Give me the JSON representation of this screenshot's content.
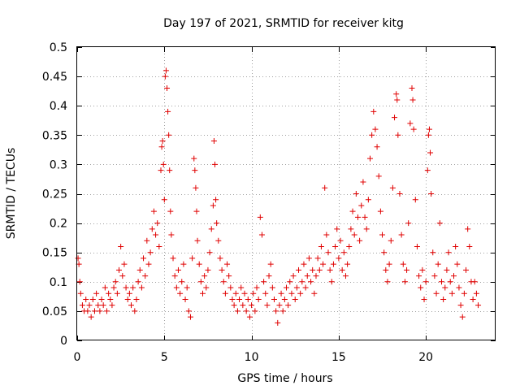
{
  "chart_data": {
    "type": "scatter",
    "title": "Day 197 of 2021, SRMTID for receiver kitg",
    "xlabel": "GPS time / hours",
    "ylabel": "SRMTID / TECUs",
    "xlim": [
      0,
      24
    ],
    "ylim": [
      0,
      0.5
    ],
    "x_ticks": [
      0,
      5,
      10,
      15,
      20
    ],
    "x_tick_labels": [
      "0",
      "5",
      "10",
      "15",
      "20"
    ],
    "y_ticks": [
      0,
      0.05,
      0.1,
      0.15,
      0.2,
      0.25,
      0.3,
      0.35,
      0.4,
      0.45,
      0.5
    ],
    "y_tick_labels": [
      "0",
      "0.05",
      "0.1",
      "0.15",
      "0.2",
      "0.25",
      "0.3",
      "0.35",
      "0.4",
      "0.45",
      "0.5"
    ],
    "grid": true,
    "marker": "plus",
    "color": "#e00000",
    "series": [
      {
        "name": "SRMTID",
        "points": [
          [
            0.05,
            0.14
          ],
          [
            0.1,
            0.13
          ],
          [
            0.15,
            0.1
          ],
          [
            0.2,
            0.08
          ],
          [
            0.3,
            0.06
          ],
          [
            0.4,
            0.05
          ],
          [
            0.5,
            0.07
          ],
          [
            0.6,
            0.05
          ],
          [
            0.7,
            0.06
          ],
          [
            0.8,
            0.04
          ],
          [
            0.9,
            0.07
          ],
          [
            1.0,
            0.05
          ],
          [
            1.1,
            0.08
          ],
          [
            1.2,
            0.06
          ],
          [
            1.3,
            0.05
          ],
          [
            1.4,
            0.07
          ],
          [
            1.5,
            0.06
          ],
          [
            1.6,
            0.09
          ],
          [
            1.7,
            0.05
          ],
          [
            1.8,
            0.08
          ],
          [
            1.9,
            0.07
          ],
          [
            2.0,
            0.06
          ],
          [
            2.1,
            0.09
          ],
          [
            2.2,
            0.1
          ],
          [
            2.3,
            0.08
          ],
          [
            2.4,
            0.12
          ],
          [
            2.5,
            0.16
          ],
          [
            2.6,
            0.11
          ],
          [
            2.7,
            0.13
          ],
          [
            2.8,
            0.09
          ],
          [
            2.9,
            0.07
          ],
          [
            3.0,
            0.08
          ],
          [
            3.1,
            0.06
          ],
          [
            3.2,
            0.09
          ],
          [
            3.3,
            0.05
          ],
          [
            3.4,
            0.07
          ],
          [
            3.5,
            0.1
          ],
          [
            3.6,
            0.12
          ],
          [
            3.7,
            0.09
          ],
          [
            3.8,
            0.14
          ],
          [
            3.9,
            0.11
          ],
          [
            4.0,
            0.17
          ],
          [
            4.1,
            0.13
          ],
          [
            4.2,
            0.15
          ],
          [
            4.3,
            0.19
          ],
          [
            4.4,
            0.22
          ],
          [
            4.5,
            0.18
          ],
          [
            4.6,
            0.2
          ],
          [
            4.7,
            0.16
          ],
          [
            4.8,
            0.29
          ],
          [
            4.85,
            0.33
          ],
          [
            4.9,
            0.34
          ],
          [
            4.95,
            0.3
          ],
          [
            5.0,
            0.24
          ],
          [
            5.05,
            0.45
          ],
          [
            5.1,
            0.46
          ],
          [
            5.15,
            0.43
          ],
          [
            5.2,
            0.39
          ],
          [
            5.25,
            0.35
          ],
          [
            5.3,
            0.29
          ],
          [
            5.35,
            0.22
          ],
          [
            5.4,
            0.18
          ],
          [
            5.5,
            0.14
          ],
          [
            5.6,
            0.11
          ],
          [
            5.7,
            0.09
          ],
          [
            5.8,
            0.12
          ],
          [
            5.9,
            0.08
          ],
          [
            6.0,
            0.1
          ],
          [
            6.1,
            0.13
          ],
          [
            6.2,
            0.07
          ],
          [
            6.3,
            0.09
          ],
          [
            6.4,
            0.05
          ],
          [
            6.5,
            0.04
          ],
          [
            6.6,
            0.14
          ],
          [
            6.7,
            0.31
          ],
          [
            6.75,
            0.29
          ],
          [
            6.8,
            0.26
          ],
          [
            6.85,
            0.22
          ],
          [
            6.9,
            0.17
          ],
          [
            7.0,
            0.13
          ],
          [
            7.1,
            0.1
          ],
          [
            7.2,
            0.08
          ],
          [
            7.3,
            0.11
          ],
          [
            7.4,
            0.09
          ],
          [
            7.5,
            0.12
          ],
          [
            7.6,
            0.15
          ],
          [
            7.7,
            0.19
          ],
          [
            7.8,
            0.23
          ],
          [
            7.85,
            0.34
          ],
          [
            7.9,
            0.3
          ],
          [
            7.95,
            0.24
          ],
          [
            8.0,
            0.2
          ],
          [
            8.1,
            0.17
          ],
          [
            8.2,
            0.14
          ],
          [
            8.3,
            0.12
          ],
          [
            8.4,
            0.1
          ],
          [
            8.5,
            0.08
          ],
          [
            8.6,
            0.13
          ],
          [
            8.7,
            0.11
          ],
          [
            8.8,
            0.09
          ],
          [
            8.9,
            0.07
          ],
          [
            9.0,
            0.06
          ],
          [
            9.1,
            0.08
          ],
          [
            9.2,
            0.05
          ],
          [
            9.3,
            0.07
          ],
          [
            9.4,
            0.09
          ],
          [
            9.5,
            0.06
          ],
          [
            9.6,
            0.08
          ],
          [
            9.7,
            0.05
          ],
          [
            9.8,
            0.07
          ],
          [
            9.9,
            0.04
          ],
          [
            10.0,
            0.06
          ],
          [
            10.1,
            0.08
          ],
          [
            10.2,
            0.05
          ],
          [
            10.3,
            0.09
          ],
          [
            10.4,
            0.07
          ],
          [
            10.5,
            0.21
          ],
          [
            10.6,
            0.18
          ],
          [
            10.7,
            0.1
          ],
          [
            10.8,
            0.08
          ],
          [
            10.9,
            0.06
          ],
          [
            11.0,
            0.11
          ],
          [
            11.1,
            0.13
          ],
          [
            11.2,
            0.09
          ],
          [
            11.3,
            0.07
          ],
          [
            11.4,
            0.05
          ],
          [
            11.5,
            0.03
          ],
          [
            11.6,
            0.06
          ],
          [
            11.7,
            0.08
          ],
          [
            11.8,
            0.05
          ],
          [
            11.9,
            0.07
          ],
          [
            12.0,
            0.09
          ],
          [
            12.1,
            0.06
          ],
          [
            12.2,
            0.1
          ],
          [
            12.3,
            0.08
          ],
          [
            12.4,
            0.11
          ],
          [
            12.5,
            0.07
          ],
          [
            12.6,
            0.09
          ],
          [
            12.7,
            0.12
          ],
          [
            12.8,
            0.08
          ],
          [
            12.9,
            0.1
          ],
          [
            13.0,
            0.13
          ],
          [
            13.1,
            0.09
          ],
          [
            13.2,
            0.11
          ],
          [
            13.3,
            0.14
          ],
          [
            13.4,
            0.1
          ],
          [
            13.5,
            0.12
          ],
          [
            13.6,
            0.08
          ],
          [
            13.7,
            0.11
          ],
          [
            13.8,
            0.14
          ],
          [
            13.9,
            0.12
          ],
          [
            14.0,
            0.16
          ],
          [
            14.1,
            0.13
          ],
          [
            14.2,
            0.26
          ],
          [
            14.3,
            0.18
          ],
          [
            14.4,
            0.15
          ],
          [
            14.5,
            0.12
          ],
          [
            14.6,
            0.1
          ],
          [
            14.7,
            0.13
          ],
          [
            14.8,
            0.16
          ],
          [
            14.9,
            0.19
          ],
          [
            15.0,
            0.14
          ],
          [
            15.1,
            0.17
          ],
          [
            15.2,
            0.12
          ],
          [
            15.3,
            0.15
          ],
          [
            15.4,
            0.11
          ],
          [
            15.5,
            0.13
          ],
          [
            15.6,
            0.16
          ],
          [
            15.7,
            0.19
          ],
          [
            15.8,
            0.22
          ],
          [
            15.9,
            0.18
          ],
          [
            16.0,
            0.25
          ],
          [
            16.1,
            0.21
          ],
          [
            16.2,
            0.17
          ],
          [
            16.3,
            0.23
          ],
          [
            16.4,
            0.27
          ],
          [
            16.5,
            0.21
          ],
          [
            16.6,
            0.19
          ],
          [
            16.7,
            0.24
          ],
          [
            16.8,
            0.31
          ],
          [
            16.9,
            0.35
          ],
          [
            17.0,
            0.39
          ],
          [
            17.1,
            0.36
          ],
          [
            17.2,
            0.33
          ],
          [
            17.3,
            0.28
          ],
          [
            17.4,
            0.22
          ],
          [
            17.5,
            0.18
          ],
          [
            17.6,
            0.15
          ],
          [
            17.7,
            0.12
          ],
          [
            17.8,
            0.1
          ],
          [
            17.9,
            0.13
          ],
          [
            18.0,
            0.17
          ],
          [
            18.1,
            0.26
          ],
          [
            18.2,
            0.38
          ],
          [
            18.3,
            0.42
          ],
          [
            18.35,
            0.41
          ],
          [
            18.4,
            0.35
          ],
          [
            18.5,
            0.25
          ],
          [
            18.6,
            0.18
          ],
          [
            18.7,
            0.13
          ],
          [
            18.8,
            0.1
          ],
          [
            18.9,
            0.12
          ],
          [
            19.0,
            0.2
          ],
          [
            19.1,
            0.37
          ],
          [
            19.2,
            0.43
          ],
          [
            19.25,
            0.41
          ],
          [
            19.3,
            0.36
          ],
          [
            19.4,
            0.24
          ],
          [
            19.5,
            0.16
          ],
          [
            19.6,
            0.11
          ],
          [
            19.7,
            0.09
          ],
          [
            19.8,
            0.12
          ],
          [
            19.9,
            0.07
          ],
          [
            20.0,
            0.1
          ],
          [
            20.1,
            0.29
          ],
          [
            20.15,
            0.35
          ],
          [
            20.2,
            0.36
          ],
          [
            20.25,
            0.32
          ],
          [
            20.3,
            0.25
          ],
          [
            20.4,
            0.15
          ],
          [
            20.5,
            0.11
          ],
          [
            20.6,
            0.08
          ],
          [
            20.7,
            0.13
          ],
          [
            20.8,
            0.2
          ],
          [
            20.9,
            0.1
          ],
          [
            21.0,
            0.07
          ],
          [
            21.1,
            0.09
          ],
          [
            21.2,
            0.12
          ],
          [
            21.3,
            0.15
          ],
          [
            21.4,
            0.1
          ],
          [
            21.5,
            0.08
          ],
          [
            21.6,
            0.11
          ],
          [
            21.7,
            0.16
          ],
          [
            21.8,
            0.13
          ],
          [
            21.9,
            0.09
          ],
          [
            22.0,
            0.06
          ],
          [
            22.1,
            0.04
          ],
          [
            22.2,
            0.08
          ],
          [
            22.3,
            0.12
          ],
          [
            22.4,
            0.19
          ],
          [
            22.5,
            0.16
          ],
          [
            22.6,
            0.1
          ],
          [
            22.7,
            0.07
          ],
          [
            22.8,
            0.1
          ],
          [
            22.9,
            0.08
          ],
          [
            23.0,
            0.06
          ]
        ]
      }
    ]
  }
}
